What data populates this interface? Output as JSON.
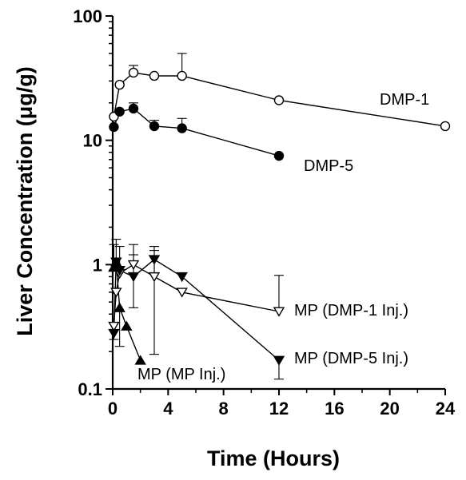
{
  "chart_data": {
    "type": "line",
    "title": "",
    "xlabel": "Time (Hours)",
    "ylabel": "Liver Concentration (μg/g)",
    "xlim": [
      0,
      24
    ],
    "ylim": [
      0.1,
      100
    ],
    "yscale": "log",
    "x_ticks": [
      "0",
      "4",
      "8",
      "12",
      "16",
      "20",
      "24"
    ],
    "x_tick_values": [
      0,
      4,
      8,
      12,
      16,
      20,
      24
    ],
    "y_ticks": [
      "0.1",
      "1",
      "10",
      "100"
    ],
    "y_tick_values": [
      0.1,
      1,
      10,
      100
    ],
    "grid": false,
    "series": [
      {
        "name": "DMP-1",
        "marker": "circle-open",
        "x": [
          0.083,
          0.5,
          1.5,
          3,
          5,
          12,
          24
        ],
        "y": [
          15.5,
          28,
          35,
          33,
          33,
          21,
          13
        ],
        "err_upper": [
          null,
          null,
          40,
          null,
          50,
          null,
          null
        ]
      },
      {
        "name": "DMP-5",
        "marker": "circle-filled",
        "x": [
          0.083,
          0.5,
          1.5,
          3,
          5,
          12
        ],
        "y": [
          12.8,
          17,
          18,
          13,
          12.5,
          7.5
        ],
        "err_upper": [
          null,
          null,
          20,
          14.5,
          15,
          null
        ]
      },
      {
        "name": "MP (DMP-1 Inj.)",
        "marker": "triangle-down-open",
        "x": [
          0.083,
          0.25,
          0.5,
          1.5,
          3,
          5,
          12
        ],
        "y": [
          0.32,
          0.6,
          0.85,
          1.0,
          0.8,
          0.6,
          0.42
        ],
        "err_upper": [
          null,
          null,
          1.4,
          1.45,
          1.3,
          null,
          0.82
        ],
        "err_lower": [
          0.25,
          null,
          null,
          null,
          null,
          null,
          null
        ]
      },
      {
        "name": "MP (DMP-5 Inj.)",
        "marker": "triangle-down-filled",
        "x": [
          0.083,
          0.25,
          0.5,
          1.5,
          3,
          5,
          12
        ],
        "y": [
          0.28,
          1.05,
          0.9,
          0.8,
          1.1,
          0.8,
          0.17
        ],
        "err_upper": [
          null,
          1.6,
          null,
          1.2,
          1.4,
          null,
          null
        ],
        "err_lower": [
          null,
          null,
          null,
          0.45,
          0.19,
          null,
          0.12
        ]
      },
      {
        "name": "MP (MP Inj.)",
        "marker": "triangle-up-filled",
        "x": [
          0.083,
          0.25,
          0.5,
          1,
          2
        ],
        "y": [
          0.95,
          1.05,
          0.45,
          0.32,
          0.17
        ],
        "err_upper": [
          1.45,
          null,
          null,
          null,
          null
        ],
        "err_lower": [
          null,
          null,
          0.22,
          null,
          null
        ]
      }
    ],
    "annotations": [
      {
        "text": "DMP-1",
        "series": 0
      },
      {
        "text": "DMP-5",
        "series": 1
      },
      {
        "text": "MP (DMP-1 Inj.)",
        "series": 2
      },
      {
        "text": "MP (DMP-5 Inj.)",
        "series": 3
      },
      {
        "text": "MP (MP Inj.)",
        "series": 4
      }
    ]
  }
}
